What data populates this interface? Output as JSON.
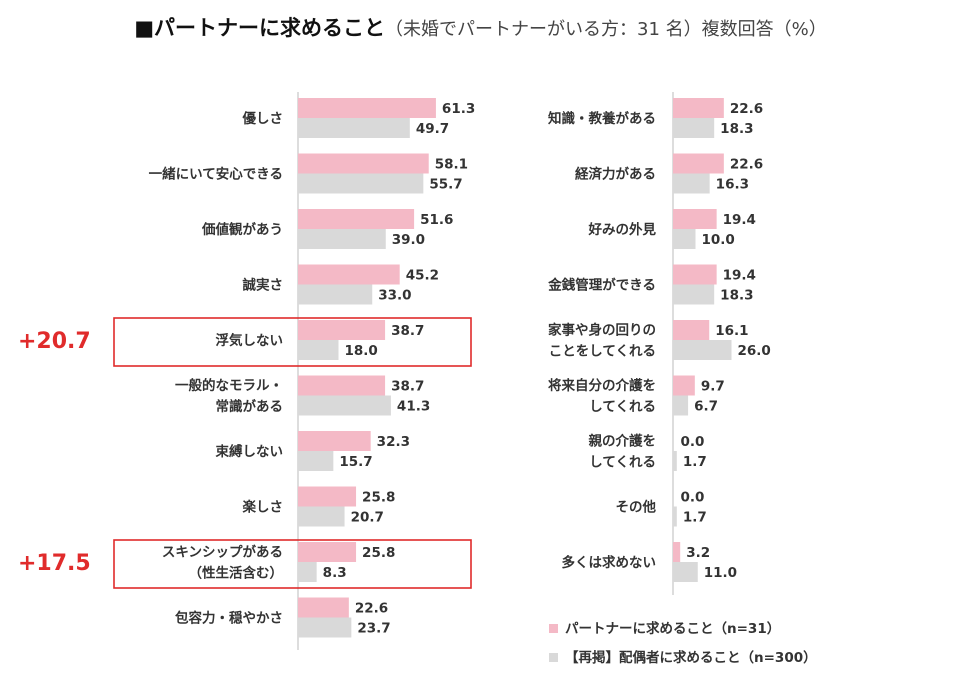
{
  "title": {
    "main": "■パートナーに求めること",
    "sub": "（未婚でパートナーがいる方：31 名）複数回答（%）"
  },
  "colors": {
    "series1": "#f4b9c6",
    "series2": "#d9d9d9",
    "highlight": "#e02b2b",
    "axis": "#bbbbbb"
  },
  "chart_data": {
    "type": "bar",
    "orientation": "horizontal",
    "title": "パートナーに求めること（未婚でパートナーがいる方：31 名）複数回答（%）",
    "unit": "%",
    "legend": [
      "パートナーに求めること（n=31）",
      "【再掲】配偶者に求めること（n=300）"
    ],
    "panels": [
      {
        "items": [
          {
            "label": [
              "優しさ"
            ],
            "v1": "61.3",
            "v2": "49.7"
          },
          {
            "label": [
              "一緒にいて安心できる"
            ],
            "v1": "58.1",
            "v2": "55.7"
          },
          {
            "label": [
              "価値観があう"
            ],
            "v1": "51.6",
            "v2": "39.0"
          },
          {
            "label": [
              "誠実さ"
            ],
            "v1": "45.2",
            "v2": "33.0"
          },
          {
            "label": [
              "浮気しない"
            ],
            "v1": "38.7",
            "v2": "18.0",
            "highlight": "+20.7"
          },
          {
            "label": [
              "一般的なモラル・",
              "常識がある"
            ],
            "v1": "38.7",
            "v2": "41.3"
          },
          {
            "label": [
              "束縛しない"
            ],
            "v1": "32.3",
            "v2": "15.7"
          },
          {
            "label": [
              "楽しさ"
            ],
            "v1": "25.8",
            "v2": "20.7"
          },
          {
            "label": [
              "スキンシップがある",
              "（性生活含む）"
            ],
            "v1": "25.8",
            "v2": "8.3",
            "highlight": "+17.5"
          },
          {
            "label": [
              "包容力・穏やかさ"
            ],
            "v1": "22.6",
            "v2": "23.7"
          }
        ]
      },
      {
        "items": [
          {
            "label": [
              "知識・教養がある"
            ],
            "v1": "22.6",
            "v2": "18.3"
          },
          {
            "label": [
              "経済力がある"
            ],
            "v1": "22.6",
            "v2": "16.3"
          },
          {
            "label": [
              "好みの外見"
            ],
            "v1": "19.4",
            "v2": "10.0"
          },
          {
            "label": [
              "金銭管理ができる"
            ],
            "v1": "19.4",
            "v2": "18.3"
          },
          {
            "label": [
              "家事や身の回りの",
              "ことをしてくれる"
            ],
            "v1": "16.1",
            "v2": "26.0"
          },
          {
            "label": [
              "将来自分の介護を",
              "してくれる"
            ],
            "v1": "9.7",
            "v2": "6.7"
          },
          {
            "label": [
              "親の介護を",
              "してくれる"
            ],
            "v1": "0.0",
            "v2": "1.7"
          },
          {
            "label": [
              "その他"
            ],
            "v1": "0.0",
            "v2": "1.7"
          },
          {
            "label": [
              "多くは求めない"
            ],
            "v1": "3.2",
            "v2": "11.0"
          }
        ]
      }
    ]
  }
}
